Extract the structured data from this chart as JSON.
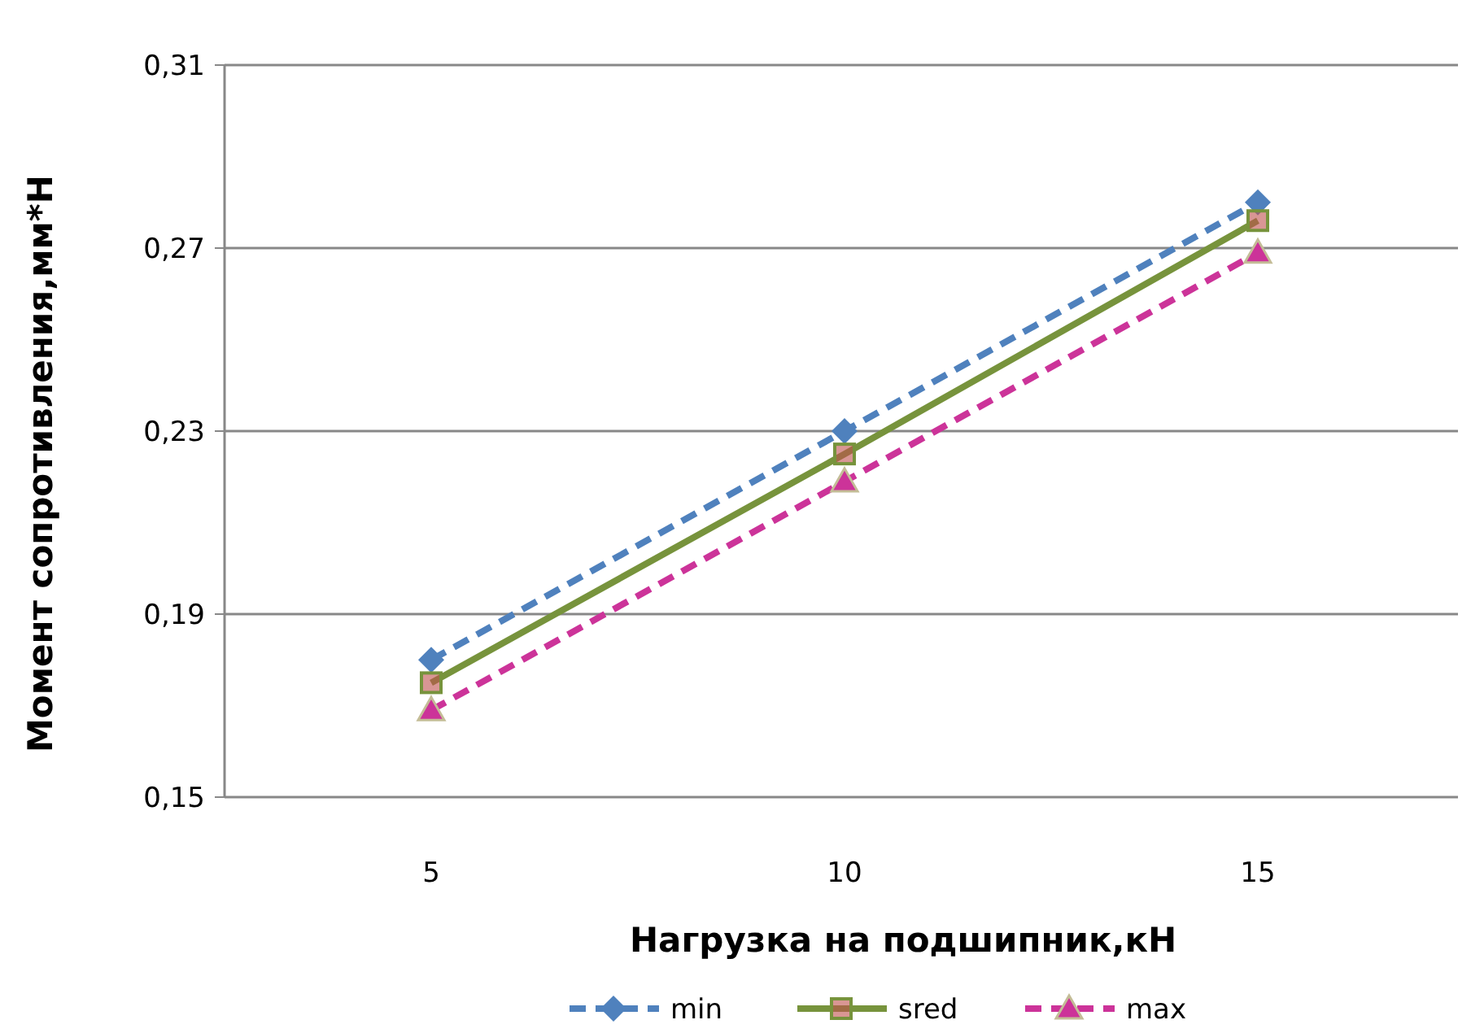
{
  "chart_data": {
    "type": "line",
    "xlabel": "Нагрузка на подшипник,кН",
    "ylabel": "Момент сопротивления,мм*Н",
    "categories": [
      "5",
      "10",
      "15"
    ],
    "ylim": [
      0.15,
      0.31
    ],
    "yticks": [
      {
        "value": 0.15,
        "label": "0,15"
      },
      {
        "value": 0.19,
        "label": "0,19"
      },
      {
        "value": 0.23,
        "label": "0,23"
      },
      {
        "value": 0.27,
        "label": "0,27"
      },
      {
        "value": 0.31,
        "label": "0,31"
      }
    ],
    "grid": "y",
    "legend": "bottom",
    "series": [
      {
        "name": "min",
        "color": "#4f81bd",
        "values": [
          0.18,
          0.23,
          0.28
        ],
        "marker": "diamond",
        "line_style": "dashed"
      },
      {
        "name": "sred",
        "color": "#77933c",
        "values": [
          0.175,
          0.225,
          0.276
        ],
        "marker": "square",
        "line_style": "solid"
      },
      {
        "name": "max",
        "color": "#cc3399",
        "values": [
          0.169,
          0.219,
          0.269
        ],
        "marker": "triangle",
        "line_style": "dashed"
      }
    ]
  }
}
